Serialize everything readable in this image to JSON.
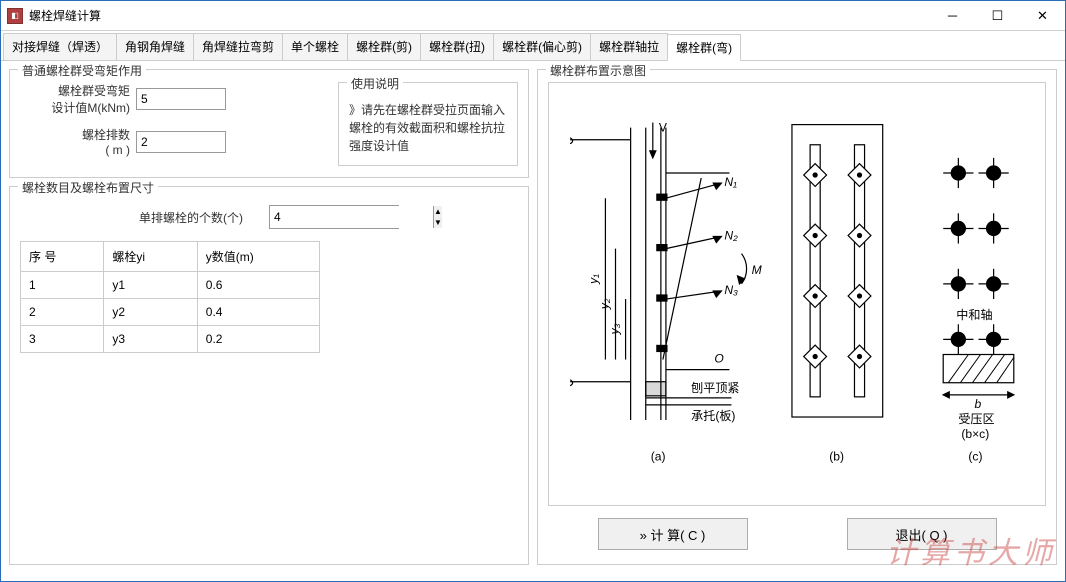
{
  "window": {
    "title": "螺栓焊缝计算"
  },
  "tabs": [
    "对接焊缝（焊透）",
    "角钢角焊缝",
    "角焊缝拉弯剪",
    "单个螺栓",
    "螺栓群(剪)",
    "螺栓群(扭)",
    "螺栓群(偏心剪)",
    "螺栓群轴拉",
    "螺栓群(弯)"
  ],
  "active_tab": 8,
  "left": {
    "group1_title": "普通螺栓群受弯矩作用",
    "moment_label": "螺栓群受弯矩\n设计值M(kNm)",
    "moment_value": "5",
    "rows_label": "螺栓排数\n( m )",
    "rows_value": "2",
    "usage_title": "使用说明",
    "usage_text": "》请先在螺栓群受拉页面输入螺栓的有效截面积和螺栓抗拉强度设计值",
    "group2_title": "螺栓数目及螺栓布置尺寸",
    "count_label": "单排螺栓的个数(个)",
    "count_value": "4",
    "table": {
      "headers": [
        "序  号",
        "螺栓yi",
        "y数值(m)"
      ],
      "rows": [
        [
          "1",
          "y1",
          "0.6"
        ],
        [
          "2",
          "y2",
          "0.4"
        ],
        [
          "3",
          "y3",
          "0.2"
        ]
      ]
    }
  },
  "right": {
    "title": "螺栓群布置示意图",
    "labels": {
      "V": "V",
      "N1": "N₁",
      "N2": "N₂",
      "N3": "N₃",
      "M": "M",
      "O": "O",
      "y1": "y₁",
      "y2": "y₂",
      "y3": "y₃",
      "t1": "刨平顶紧",
      "t2": "承托(板)",
      "zh": "中和轴",
      "b": "b",
      "compress": "受压区",
      "bc": "(b×c)",
      "a": "(a)",
      "bl": "(b)",
      "c": "(c)"
    }
  },
  "buttons": {
    "calc": "»  计  算( C )",
    "exit": "退出( Q )"
  },
  "watermark": "计算书大师",
  "colors": {
    "border": "#cccccc",
    "text": "#333333",
    "line": "#000000",
    "watermark": "rgba(200,60,60,0.45)"
  }
}
